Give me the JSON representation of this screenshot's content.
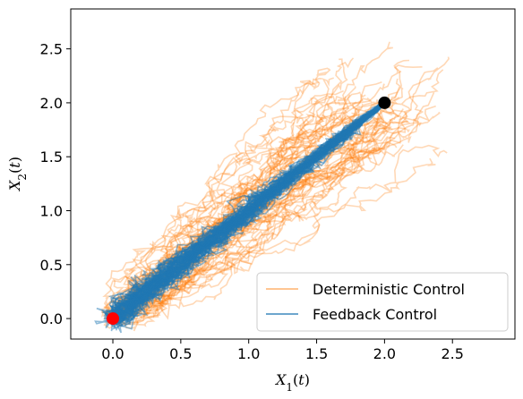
{
  "chart_data": {
    "type": "line",
    "title": "",
    "xlabel": "X_1(t)",
    "ylabel": "X_2(t)",
    "xlim": [
      -0.31,
      2.96
    ],
    "ylim": [
      -0.19,
      2.87
    ],
    "xticks": [
      "0.0",
      "0.5",
      "1.0",
      "1.5",
      "2.0",
      "2.5"
    ],
    "xtick_values": [
      0.0,
      0.5,
      1.0,
      1.5,
      2.0,
      2.5
    ],
    "yticks": [
      "0.0",
      "0.5",
      "1.0",
      "1.5",
      "2.0",
      "2.5"
    ],
    "ytick_values": [
      0.0,
      0.5,
      1.0,
      1.5,
      2.0,
      2.5
    ],
    "grid": false,
    "legend_position": "lower-right",
    "series": [
      {
        "name": "Deterministic Control",
        "color": "#ff7f0e",
        "opacity": 0.3,
        "description_count": 60,
        "representative_paths": [
          {
            "x": [
              0.0,
              0.3,
              0.7,
              1.1,
              1.5,
              1.9,
              2.2,
              2.5
            ],
            "y": [
              0.0,
              0.4,
              0.9,
              1.3,
              1.7,
              2.1,
              2.4,
              2.72
            ]
          },
          {
            "x": [
              0.0,
              0.4,
              0.8,
              1.2,
              1.6,
              2.0,
              2.4,
              2.8
            ],
            "y": [
              0.0,
              0.2,
              0.5,
              0.8,
              1.0,
              1.2,
              1.45,
              1.75
            ]
          },
          {
            "x": [
              0.0,
              -0.15,
              0.2,
              0.6,
              1.0,
              1.4,
              1.8,
              2.0
            ],
            "y": [
              0.0,
              0.3,
              0.6,
              1.0,
              1.4,
              1.8,
              2.0,
              2.0
            ]
          }
        ]
      },
      {
        "name": "Feedback Control",
        "color": "#1f77b4",
        "opacity": 0.5,
        "description_count": 60,
        "representative_paths": [
          {
            "x": [
              0.0,
              0.4,
              0.8,
              1.2,
              1.6,
              2.0
            ],
            "y": [
              0.0,
              0.4,
              0.8,
              1.2,
              1.6,
              2.0
            ]
          }
        ]
      }
    ],
    "markers": [
      {
        "x": 0.0,
        "y": 0.0,
        "color": "#ff0000"
      },
      {
        "x": 2.0,
        "y": 2.0,
        "color": "#000000"
      }
    ]
  }
}
